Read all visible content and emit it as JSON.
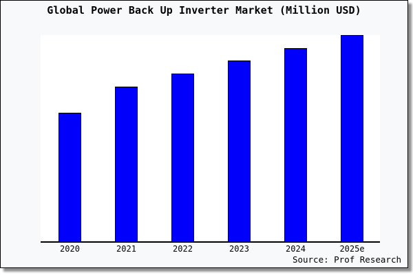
{
  "chart_data": {
    "type": "bar",
    "title": "Global Power Back Up Inverter Market (Million USD)",
    "categories": [
      "2020",
      "2021",
      "2022",
      "2023",
      "2024",
      "2025e"
    ],
    "values": [
      62.3,
      75.0,
      81.3,
      87.7,
      93.7,
      100.0
    ],
    "ylim": [
      0,
      100
    ],
    "xlabel": "",
    "ylabel": "",
    "grid": false,
    "legend": false,
    "y_axis_shown": false,
    "source": "Source: Prof Research",
    "bar_color": "#0000fb",
    "bar_edge_color": "#000000"
  },
  "colors": {
    "figure_background": "#f8f9fa",
    "plot_background": "#ffffff",
    "frame_border": "#000000",
    "shadow": "#8f8f8f",
    "text": "#000000"
  }
}
